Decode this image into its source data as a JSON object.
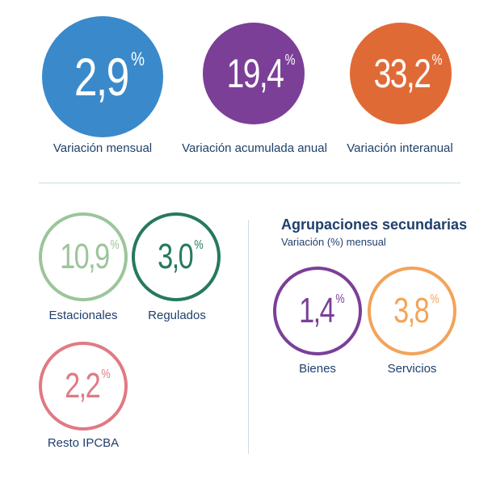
{
  "main": {
    "mensual": {
      "value": "2,9",
      "unit": "%",
      "label": "Variación mensual",
      "color": "#3a8acb"
    },
    "acumulada": {
      "value": "19,4",
      "unit": "%",
      "label": "Variación acumulada anual",
      "color": "#7b3f98"
    },
    "interanual": {
      "value": "33,2",
      "unit": "%",
      "label": "Variación interanual",
      "color": "#e06a36"
    }
  },
  "categories": {
    "estacionales": {
      "value": "10,9",
      "unit": "%",
      "label": "Estacionales",
      "color": "#9cc59a"
    },
    "regulados": {
      "value": "3,0",
      "unit": "%",
      "label": "Regulados",
      "color": "#257a5b"
    },
    "resto": {
      "value": "2,2",
      "unit": "%",
      "label": "Resto IPCBA",
      "color": "#e07a84"
    }
  },
  "secondary": {
    "title": "Agrupaciones secundarias",
    "subtitle": "Variación (%) mensual",
    "bienes": {
      "value": "1,4",
      "unit": "%",
      "label": "Bienes",
      "color": "#7b3f98"
    },
    "servicios": {
      "value": "3,8",
      "unit": "%",
      "label": "Servicios",
      "color": "#f2a45a"
    }
  }
}
